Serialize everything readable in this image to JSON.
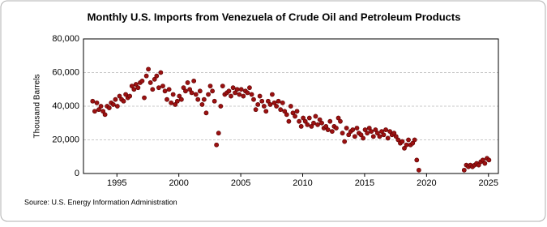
{
  "chart_data": {
    "type": "scatter",
    "title": "Monthly U.S. Imports from Venezuela of Crude Oil and Petroleum Products",
    "y_label": "Thousand Barrels",
    "source": "Source: U.S. Energy Information Administration",
    "color": "#9b1111",
    "grid": true,
    "xlim": [
      1992.3,
      2025.8
    ],
    "xticks": [
      1995,
      2000,
      2005,
      2010,
      2015,
      2020,
      2025
    ],
    "ylim": [
      0,
      80000
    ],
    "yticks": [
      0,
      {
        "value": 20000,
        "label": "20,000"
      },
      {
        "value": 40000,
        "label": "40,000"
      },
      {
        "value": 60000,
        "label": "60,000"
      },
      {
        "value": 80000,
        "label": "80,000"
      }
    ],
    "x": [
      1993.04,
      1993.21,
      1993.38,
      1993.54,
      1993.71,
      1993.88,
      1994.04,
      1994.21,
      1994.38,
      1994.54,
      1994.71,
      1994.88,
      1995.04,
      1995.21,
      1995.38,
      1995.54,
      1995.71,
      1995.88,
      1996.04,
      1996.21,
      1996.38,
      1996.54,
      1996.71,
      1996.88,
      1997.04,
      1997.21,
      1997.38,
      1997.54,
      1997.71,
      1997.88,
      1998.04,
      1998.21,
      1998.38,
      1998.54,
      1998.71,
      1998.88,
      1999.04,
      1999.21,
      1999.38,
      1999.54,
      1999.71,
      1999.88,
      2000.04,
      2000.21,
      2000.38,
      2000.54,
      2000.71,
      2000.88,
      2001.04,
      2001.21,
      2001.38,
      2001.54,
      2001.71,
      2001.88,
      2002.04,
      2002.21,
      2002.38,
      2002.54,
      2002.71,
      2002.88,
      2003.04,
      2003.21,
      2003.38,
      2003.54,
      2003.71,
      2003.88,
      2004.04,
      2004.21,
      2004.38,
      2004.54,
      2004.71,
      2004.88,
      2005.04,
      2005.21,
      2005.38,
      2005.54,
      2005.71,
      2005.88,
      2006.04,
      2006.21,
      2006.38,
      2006.54,
      2006.71,
      2006.88,
      2007.04,
      2007.21,
      2007.38,
      2007.54,
      2007.71,
      2007.88,
      2008.04,
      2008.21,
      2008.38,
      2008.54,
      2008.71,
      2008.88,
      2009.04,
      2009.21,
      2009.38,
      2009.54,
      2009.71,
      2009.88,
      2010.04,
      2010.21,
      2010.38,
      2010.54,
      2010.71,
      2010.88,
      2011.04,
      2011.21,
      2011.38,
      2011.54,
      2011.71,
      2011.88,
      2012.04,
      2012.21,
      2012.38,
      2012.54,
      2012.71,
      2012.88,
      2013.04,
      2013.21,
      2013.38,
      2013.54,
      2013.71,
      2013.88,
      2014.04,
      2014.21,
      2014.38,
      2014.54,
      2014.71,
      2014.88,
      2015.04,
      2015.21,
      2015.38,
      2015.54,
      2015.71,
      2015.88,
      2016.04,
      2016.21,
      2016.38,
      2016.54,
      2016.71,
      2016.88,
      2017.04,
      2017.21,
      2017.38,
      2017.54,
      2017.71,
      2017.88,
      2018.04,
      2018.21,
      2018.38,
      2018.54,
      2018.71,
      2018.88,
      2019.04,
      2019.21,
      2019.38,
      2023.04,
      2023.21,
      2023.38,
      2023.54,
      2023.71,
      2023.88,
      2024.04,
      2024.21,
      2024.38,
      2024.54,
      2024.71,
      2024.88,
      2025.04
    ],
    "values": [
      43000,
      37000,
      42000,
      38000,
      40000,
      37000,
      35000,
      40000,
      39000,
      42000,
      41000,
      44000,
      40000,
      46000,
      44000,
      43000,
      47000,
      45000,
      46000,
      52000,
      50000,
      53000,
      51000,
      54000,
      55000,
      45000,
      58000,
      62000,
      54000,
      50000,
      56000,
      58000,
      51000,
      60000,
      52000,
      49000,
      44000,
      50000,
      42000,
      47000,
      41000,
      43000,
      46000,
      44000,
      51000,
      49000,
      54000,
      50000,
      48000,
      55000,
      47000,
      44000,
      49000,
      41000,
      44000,
      36000,
      47000,
      52000,
      49000,
      43000,
      17000,
      24000,
      40000,
      52000,
      47000,
      48000,
      49000,
      46000,
      51000,
      48000,
      50000,
      47000,
      50000,
      46000,
      49000,
      48000,
      51000,
      47000,
      44000,
      38000,
      41000,
      46000,
      43000,
      40000,
      37000,
      43000,
      41000,
      47000,
      42000,
      40000,
      43000,
      38000,
      42000,
      37000,
      35000,
      31000,
      40000,
      36000,
      34000,
      37000,
      31000,
      28000,
      33000,
      31000,
      29000,
      33000,
      28000,
      30000,
      34000,
      29000,
      32000,
      30000,
      27000,
      28000,
      26000,
      31000,
      25000,
      28000,
      27000,
      33000,
      31000,
      24000,
      19000,
      27000,
      23000,
      25000,
      26000,
      22000,
      27000,
      24000,
      23000,
      21000,
      26000,
      24000,
      27000,
      25000,
      22000,
      26000,
      24000,
      22000,
      25000,
      23000,
      26000,
      21000,
      25000,
      23000,
      24000,
      22000,
      20000,
      18000,
      19000,
      15000,
      17000,
      20000,
      17000,
      18000,
      20000,
      8000,
      2000,
      2000,
      5000,
      4000,
      5000,
      4000,
      5000,
      6000,
      5000,
      7000,
      8000,
      6000,
      9000,
      8000
    ]
  }
}
